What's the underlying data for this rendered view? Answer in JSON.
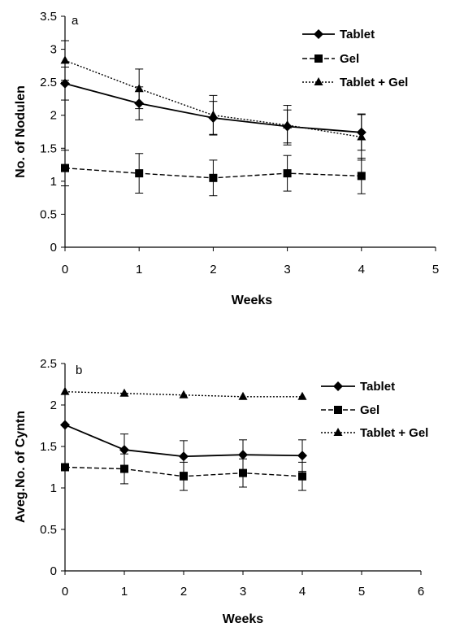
{
  "chart_data": [
    {
      "type": "line",
      "panel_label": "a",
      "xlabel": "Weeks",
      "ylabel": "No. of Nodulen",
      "xlim": [
        0,
        5
      ],
      "ylim": [
        0,
        3.5
      ],
      "x_ticks": [
        "0",
        "1",
        "2",
        "3",
        "4",
        "5"
      ],
      "y_ticks": [
        "0",
        "0.5",
        "1",
        "1.5",
        "2",
        "2.5",
        "3",
        "3.5"
      ],
      "x": [
        0,
        1,
        2,
        3,
        4
      ],
      "series": [
        {
          "name": "Tablet",
          "marker": "diamond",
          "line": "solid",
          "values": [
            2.48,
            2.18,
            1.96,
            1.83,
            1.74
          ],
          "errors": [
            0.25,
            0.25,
            0.25,
            0.25,
            0.27
          ]
        },
        {
          "name": "Gel",
          "marker": "square",
          "line": "dashed",
          "values": [
            1.2,
            1.12,
            1.05,
            1.12,
            1.08
          ],
          "errors": [
            0.27,
            0.3,
            0.27,
            0.27,
            0.27
          ]
        },
        {
          "name": "Tablet + Gel",
          "marker": "triangle",
          "line": "dotted",
          "values": [
            2.83,
            2.4,
            2.0,
            1.85,
            1.67
          ],
          "errors": [
            0.3,
            0.3,
            0.3,
            0.3,
            0.35
          ]
        }
      ],
      "legend_position": "top-right",
      "grid": false
    },
    {
      "type": "line",
      "panel_label": "b",
      "xlabel": "Weeks",
      "ylabel": "Aveg.No. of Cyntn",
      "xlim": [
        0,
        6
      ],
      "ylim": [
        0,
        2.5
      ],
      "x_ticks": [
        "0",
        "1",
        "2",
        "3",
        "4",
        "5",
        "6"
      ],
      "y_ticks": [
        "0",
        "0.5",
        "1",
        "1.5",
        "2",
        "2.5"
      ],
      "x": [
        0,
        1,
        2,
        3,
        4
      ],
      "series": [
        {
          "name": "Tablet",
          "marker": "diamond",
          "line": "solid",
          "values": [
            1.76,
            1.46,
            1.38,
            1.4,
            1.39
          ],
          "errors": [
            0,
            0.19,
            0.19,
            0.18,
            0.19
          ]
        },
        {
          "name": "Gel",
          "marker": "square",
          "line": "dashed",
          "values": [
            1.25,
            1.23,
            1.14,
            1.18,
            1.14
          ],
          "errors": [
            0,
            0.18,
            0.17,
            0.17,
            0.17
          ]
        },
        {
          "name": "Tablet + Gel",
          "marker": "triangle",
          "line": "dotted",
          "values": [
            2.16,
            2.14,
            2.12,
            2.1,
            2.1
          ],
          "errors": [
            0,
            0,
            0,
            0,
            0
          ]
        }
      ],
      "legend_position": "right",
      "grid": false
    }
  ]
}
